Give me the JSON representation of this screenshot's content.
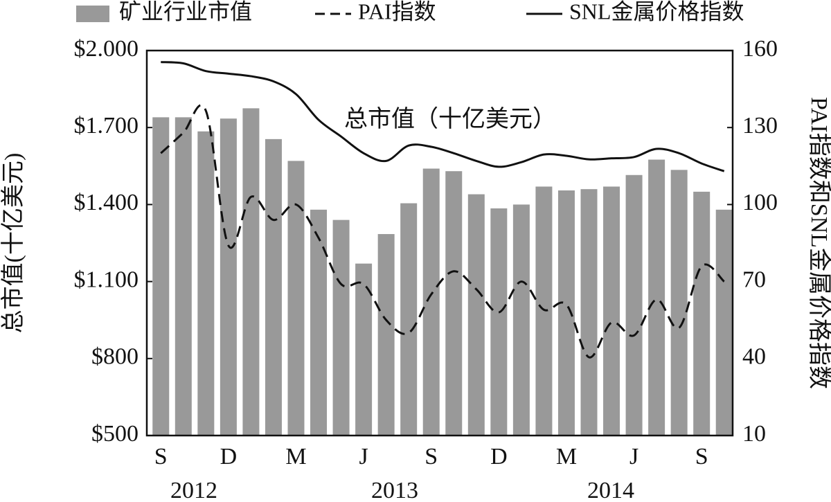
{
  "chart_data": {
    "type": "bar-line",
    "annotation": "总市值（十亿美元）",
    "y_label": "总市值(十亿美元)",
    "y2_label": "PAI指数和SNL金属价格指数",
    "categories": [
      "S",
      null,
      null,
      "D",
      null,
      null,
      "M",
      null,
      null,
      "J",
      null,
      null,
      "S",
      null,
      null,
      "D",
      null,
      null,
      "M",
      null,
      null,
      "J",
      null,
      null,
      "S",
      null
    ],
    "years": [
      "2012",
      "2013",
      "2014"
    ],
    "ylim": [
      500,
      2000
    ],
    "yticks": [
      {
        "value": 500,
        "label": "$500"
      },
      {
        "value": 800,
        "label": "$800"
      },
      {
        "value": 1100,
        "label": "$1.100"
      },
      {
        "value": 1400,
        "label": "$1.400"
      },
      {
        "value": 1700,
        "label": "$1.700"
      },
      {
        "value": 2000,
        "label": "$2.000"
      }
    ],
    "y2lim": [
      10,
      160
    ],
    "y2ticks": [
      10,
      40,
      70,
      100,
      130,
      160
    ],
    "series": [
      {
        "name": "矿业行业市值",
        "kind": "bar",
        "color": "#999999",
        "values": [
          1740,
          1740,
          1685,
          1735,
          1775,
          1655,
          1570,
          1380,
          1340,
          1170,
          1285,
          1405,
          1540,
          1530,
          1440,
          1385,
          1400,
          1470,
          1455,
          1460,
          1470,
          1515,
          1575,
          1535,
          1450,
          1380
        ]
      },
      {
        "name": "PAI指数",
        "kind": "dashed",
        "axis": "y2",
        "color": "#111111",
        "values": [
          120,
          128,
          136.5,
          84,
          103,
          94,
          100,
          87,
          69,
          69,
          55,
          50,
          65,
          74,
          67,
          58,
          70,
          59,
          61,
          40.5,
          54,
          49,
          63,
          52,
          76,
          70
        ]
      },
      {
        "name": "SNL金属价格指数",
        "kind": "solid",
        "axis": "y2",
        "color": "#111111",
        "values": [
          155.5,
          155,
          152,
          151,
          150,
          148,
          143,
          133,
          126.5,
          120,
          117,
          123,
          122.5,
          120,
          117,
          114.7,
          116.5,
          119.5,
          119,
          117.6,
          118,
          118.5,
          121.7,
          120,
          116,
          113
        ]
      }
    ]
  }
}
